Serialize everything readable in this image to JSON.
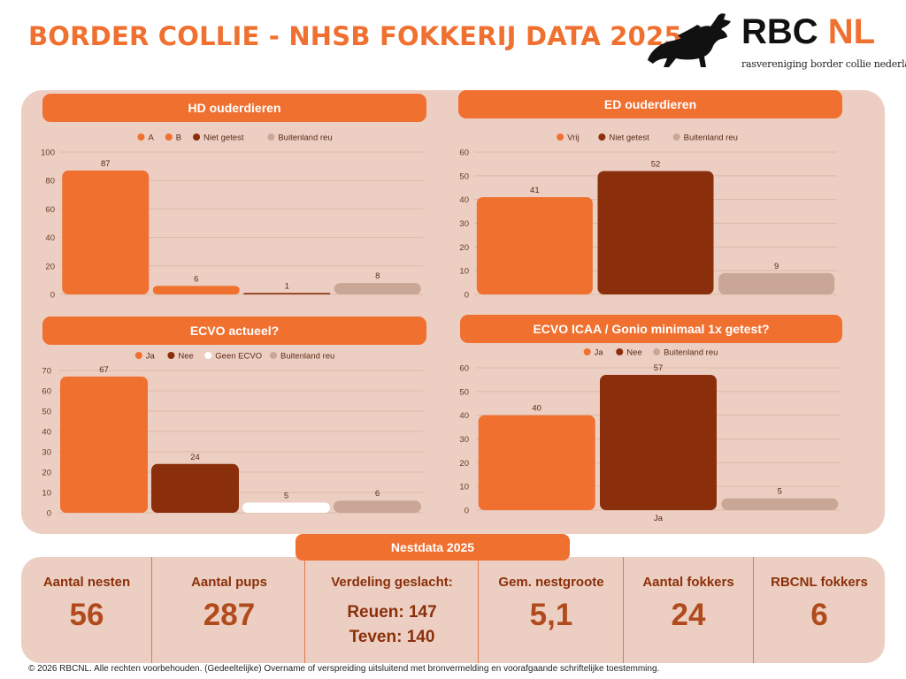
{
  "title": "BORDER COLLIE - NHSB FOKKERIJ DATA 2025",
  "logo": {
    "name_black": "RBC",
    "name_orange": "NL",
    "subtitle": "rasvereniging border collie nederland"
  },
  "colors": {
    "orange": "#f07030",
    "dark": "#8a2e0c",
    "white": "#ffffff",
    "tan": "#c9a695"
  },
  "chart_data": [
    {
      "type": "bar",
      "title": "HD ouderdieren",
      "categories": [
        "A",
        "B",
        "Niet getest",
        "Buitenland reu"
      ],
      "values": [
        87,
        6,
        1,
        8
      ],
      "legend": [
        "A",
        "B",
        "Niet getest",
        "Buitenland reu"
      ],
      "bar_colors": [
        "#f07030",
        "#f07030",
        "#8a2e0c",
        "#c9a695"
      ],
      "ylim": [
        0,
        100
      ],
      "yticks": [
        0,
        20,
        40,
        60,
        80,
        100
      ],
      "xlabel": "",
      "ylabel": "",
      "grid": true,
      "legend_position": "top"
    },
    {
      "type": "bar",
      "title": "ED ouderdieren",
      "categories": [
        "Vrij",
        "Niet getest",
        "Buitenland reu"
      ],
      "values": [
        41,
        52,
        9
      ],
      "legend": [
        "Vrij",
        "Niet getest",
        "Buitenland reu"
      ],
      "bar_colors": [
        "#f07030",
        "#8a2e0c",
        "#c9a695"
      ],
      "ylim": [
        0,
        60
      ],
      "yticks": [
        0,
        10,
        20,
        30,
        40,
        50,
        60
      ],
      "xlabel": "",
      "ylabel": "",
      "grid": true,
      "legend_position": "top"
    },
    {
      "type": "bar",
      "title": "ECVO actueel?",
      "categories": [
        "Ja",
        "Nee",
        "Geen ECVO",
        "Buitenland reu"
      ],
      "values": [
        67,
        24,
        5,
        6
      ],
      "legend": [
        "Ja",
        "Nee",
        "Geen ECVO",
        "Buitenland reu"
      ],
      "bar_colors": [
        "#f07030",
        "#8a2e0c",
        "#ffffff",
        "#c9a695"
      ],
      "ylim": [
        0,
        70
      ],
      "yticks": [
        0,
        10,
        20,
        30,
        40,
        50,
        60,
        70
      ],
      "xlabel": "",
      "ylabel": "",
      "grid": true,
      "legend_position": "top"
    },
    {
      "type": "bar",
      "title": "ECVO ICAA / Gonio minimaal 1x getest?",
      "categories": [
        "Ja",
        "Nee",
        "Buitenland reu"
      ],
      "values": [
        40,
        57,
        5
      ],
      "legend": [
        "Ja",
        "Nee",
        "Buitenland reu"
      ],
      "bar_colors": [
        "#f07030",
        "#8a2e0c",
        "#c9a695"
      ],
      "ylim": [
        0,
        60
      ],
      "yticks": [
        0,
        10,
        20,
        30,
        40,
        50,
        60
      ],
      "x_axis_label": "Ja",
      "xlabel": "",
      "ylabel": "",
      "grid": true,
      "legend_position": "top"
    }
  ],
  "nestdata": {
    "title": "Nestdata 2025",
    "aantal_nesten": {
      "label": "Aantal nesten",
      "value": "56"
    },
    "aantal_pups": {
      "label": "Aantal pups",
      "value": "287"
    },
    "verdeling": {
      "label": "Verdeling geslacht:",
      "reuen": "Reuen: 147",
      "teven": "Teven: 140"
    },
    "nestgrootte": {
      "label": "Gem. nestgroote",
      "value": "5,1"
    },
    "fokkers": {
      "label": "Aantal  fokkers",
      "value": "24"
    },
    "rbcnl_fokkers": {
      "label": "RBCNL fokkers",
      "value": "6"
    }
  },
  "footer": "© 2026 RBCNL. Alle rechten voorbehouden. (Gedeeltelijke) Overname of verspreiding uitsluitend met bronvermelding en voorafgaande schriftelijke toestemming."
}
